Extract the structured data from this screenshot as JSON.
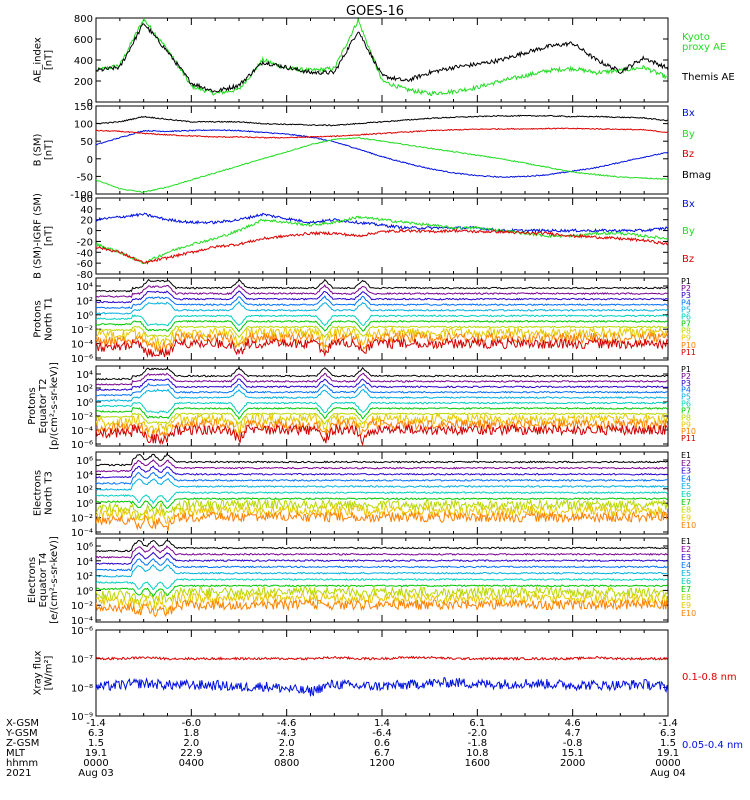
{
  "title": "GOES-16",
  "colors": {
    "black": "#000000",
    "green": "#22dd22",
    "blue": "#0010e0",
    "red": "#dd0000",
    "p": [
      "#000000",
      "#7a0090",
      "#2a00cc",
      "#0070ff",
      "#00b0e0",
      "#00d0c0",
      "#00c800",
      "#b8d800",
      "#e8c800",
      "#ff8000",
      "#d00000"
    ]
  },
  "panels": [
    {
      "id": "ae",
      "ylabel": [
        "AE_index",
        "[nT]"
      ],
      "ylim": [
        0,
        800
      ],
      "yticks": [
        "800",
        "600",
        "400",
        "200",
        "0"
      ],
      "legend": [
        {
          "text": "Kyoto",
          "color": "green"
        },
        {
          "text": "proxy AE",
          "color": "green"
        },
        {
          "text": "Themis AE",
          "color": "black"
        }
      ]
    },
    {
      "id": "bsm",
      "ylabel": [
        "B (SM)",
        "[nT]"
      ],
      "ylim": [
        -100,
        100
      ],
      "yticks": [
        "150",
        "100",
        "50",
        "0",
        "-50",
        "-100"
      ],
      "legend": [
        {
          "text": "Bx",
          "color": "blue"
        },
        {
          "text": "By",
          "color": "green"
        },
        {
          "text": "Bz",
          "color": "red"
        },
        {
          "text": "Bmag",
          "color": "black"
        }
      ]
    },
    {
      "id": "bigrf",
      "ylabel": [
        "B (SM)-IGRF (SM)",
        "[nT]"
      ],
      "ylim": [
        -80,
        60
      ],
      "yticks": [
        "60",
        "40",
        "20",
        "0",
        "-20",
        "-40",
        "-60",
        "-80"
      ],
      "legend": [
        {
          "text": "Bx",
          "color": "blue"
        },
        {
          "text": "By",
          "color": "green"
        },
        {
          "text": "Bz",
          "color": "red"
        }
      ]
    },
    {
      "id": "pn",
      "ylabel": [
        "Protons",
        "North T1"
      ],
      "yticks": [
        "10⁴",
        "10²",
        "10⁰",
        "10⁻²",
        "10⁻⁴",
        "10⁻⁶"
      ],
      "channels": [
        "P1",
        "P2",
        "P3",
        "P4",
        "P5",
        "P6",
        "P7",
        "P8",
        "P9",
        "P10",
        "P11"
      ]
    },
    {
      "id": "pe",
      "ylabel": [
        "Protons",
        "Equator T2",
        "[p/(cm²-s-sr-keV)]"
      ],
      "yticks": [
        "10⁴",
        "10²",
        "10⁰",
        "10⁻²",
        "10⁻⁴",
        "10⁻⁶"
      ],
      "channels": [
        "P1",
        "P2",
        "P3",
        "P4",
        "P5",
        "P6",
        "P7",
        "P8",
        "P9",
        "P10",
        "P11"
      ]
    },
    {
      "id": "en",
      "ylabel": [
        "Electrons",
        "North T3"
      ],
      "yticks": [
        "10⁶",
        "10⁴",
        "10²",
        "10⁰",
        "10⁻²",
        "10⁻⁴"
      ],
      "channels": [
        "E1",
        "E2",
        "E3",
        "E4",
        "E5",
        "E6",
        "E7",
        "E8",
        "E9",
        "E10"
      ]
    },
    {
      "id": "ee",
      "ylabel": [
        "Electrons",
        "Equator T4",
        "[e/(cm²-s-sr-keV)]"
      ],
      "yticks": [
        "10⁶",
        "10⁴",
        "10²",
        "10⁰",
        "10⁻²",
        "10⁻⁴"
      ],
      "channels": [
        "E1",
        "E2",
        "E3",
        "E4",
        "E5",
        "E6",
        "E7",
        "E8",
        "E9",
        "E10"
      ]
    },
    {
      "id": "xray",
      "ylabel": [
        "Xray flux",
        "[W/m²]"
      ],
      "yticks": [
        "10⁻⁶",
        "10⁻⁷",
        "10⁻⁸",
        "10⁻⁹"
      ],
      "legend": [
        {
          "text": "0.1-0.8 nm",
          "color": "red"
        },
        {
          "text": "0.05-0.4 nm",
          "color": "blue"
        }
      ]
    }
  ],
  "footer": {
    "labels": [
      "X-GSM",
      "Y-GSM",
      "Z-GSM",
      "MLT",
      "hhmm",
      "2021"
    ],
    "columns": [
      [
        "-1.4",
        "6.3",
        "1.5",
        "19.1",
        "0000",
        "Aug 03"
      ],
      [
        "-6.0",
        "1.8",
        "2.0",
        "22.9",
        "0400",
        ""
      ],
      [
        "-4.6",
        "-4.3",
        "2.0",
        "2.8",
        "0800",
        ""
      ],
      [
        "1.4",
        "-6.4",
        "0.6",
        "6.7",
        "1200",
        ""
      ],
      [
        "6.1",
        "-2.0",
        "-1.8",
        "10.8",
        "1600",
        ""
      ],
      [
        "4.6",
        "4.7",
        "-0.8",
        "15.1",
        "2000",
        ""
      ],
      [
        "-1.4",
        "6.3",
        "1.5",
        "19.1",
        "0000",
        "Aug 04"
      ]
    ]
  },
  "chart_data": {
    "type": "line",
    "title": "GOES-16",
    "x": [
      0,
      1,
      2,
      3,
      4,
      5,
      6,
      7,
      8,
      9,
      10,
      11,
      12,
      13,
      14,
      15,
      16,
      17,
      18,
      19,
      20,
      21,
      22,
      23,
      24
    ],
    "xlabel": "",
    "xlim": [
      0,
      24
    ],
    "series": [
      {
        "name": "Kyoto",
        "panel": "ae",
        "values": [
          300,
          350,
          790,
          500,
          150,
          80,
          120,
          400,
          320,
          300,
          320,
          780,
          200,
          120,
          80,
          100,
          140,
          200,
          250,
          300,
          320,
          280,
          300,
          330,
          230
        ]
      },
      {
        "name": "Themis AE",
        "panel": "ae",
        "values": [
          300,
          330,
          750,
          480,
          180,
          100,
          160,
          380,
          330,
          280,
          280,
          680,
          250,
          200,
          280,
          330,
          360,
          400,
          470,
          530,
          560,
          400,
          290,
          420,
          320
        ]
      },
      {
        "name": "Bx",
        "panel": "bsm",
        "values": [
          40,
          60,
          80,
          78,
          80,
          82,
          80,
          75,
          70,
          62,
          48,
          28,
          6,
          -12,
          -28,
          -40,
          -48,
          -52,
          -50,
          -45,
          -35,
          -25,
          -10,
          5,
          18
        ]
      },
      {
        "name": "By",
        "panel": "bsm",
        "values": [
          -60,
          -85,
          -95,
          -80,
          -60,
          -40,
          -20,
          0,
          20,
          40,
          55,
          60,
          50,
          40,
          30,
          20,
          10,
          0,
          -12,
          -25,
          -38,
          -45,
          -52,
          -55,
          -58
        ]
      },
      {
        "name": "Bz",
        "panel": "bsm",
        "values": [
          80,
          78,
          72,
          68,
          65,
          62,
          62,
          60,
          60,
          62,
          64,
          68,
          72,
          76,
          80,
          82,
          84,
          85,
          85,
          86,
          86,
          85,
          84,
          82,
          75
        ]
      },
      {
        "name": "Bmag",
        "panel": "bsm",
        "values": [
          100,
          105,
          120,
          112,
          105,
          105,
          105,
          100,
          98,
          96,
          95,
          100,
          105,
          110,
          115,
          118,
          120,
          122,
          122,
          122,
          120,
          120,
          118,
          116,
          108
        ]
      },
      {
        "name": "Bx",
        "panel": "bigrf",
        "values": [
          20,
          25,
          30,
          20,
          15,
          15,
          20,
          30,
          22,
          15,
          20,
          15,
          10,
          5,
          5,
          5,
          5,
          0,
          0,
          0,
          0,
          0,
          0,
          0,
          5
        ]
      },
      {
        "name": "By",
        "panel": "bigrf",
        "values": [
          -25,
          -40,
          -60,
          -40,
          -25,
          -15,
          0,
          20,
          15,
          10,
          15,
          25,
          20,
          15,
          10,
          5,
          5,
          0,
          -5,
          -10,
          -10,
          -5,
          -5,
          -10,
          -15
        ]
      },
      {
        "name": "Bz",
        "panel": "bigrf",
        "values": [
          -30,
          -40,
          -60,
          -50,
          -40,
          -30,
          -25,
          -15,
          -10,
          -5,
          -5,
          -10,
          -2,
          0,
          -2,
          0,
          -2,
          -2,
          -5,
          -5,
          -10,
          -12,
          -15,
          -18,
          -25
        ]
      },
      {
        "name": "0.1-0.8 nm",
        "panel": "xray",
        "values": [
          1e-07,
          1e-07,
          1.1e-07,
          1e-07,
          1e-07,
          1e-07,
          1e-07,
          1e-07,
          1e-07,
          1e-07,
          1.1e-07,
          1e-07,
          1e-07,
          1.1e-07,
          1.1e-07,
          1e-07,
          1e-07,
          1e-07,
          1e-07,
          1e-07,
          1e-07,
          1.1e-07,
          1e-07,
          1e-07,
          1e-07
        ]
      },
      {
        "name": "0.05-0.4 nm",
        "panel": "xray",
        "values": [
          1e-08,
          1.2e-08,
          1.4e-08,
          1.2e-08,
          1.2e-08,
          1.2e-08,
          1e-08,
          1.1e-08,
          9e-09,
          7e-09,
          1.3e-08,
          1.1e-08,
          1.1e-08,
          1.2e-08,
          1.4e-08,
          1.5e-08,
          1.3e-08,
          1.3e-08,
          1.4e-08,
          1.3e-08,
          1.2e-08,
          1.2e-08,
          1.2e-08,
          1.3e-08,
          1e-08
        ]
      }
    ],
    "grid": false
  }
}
